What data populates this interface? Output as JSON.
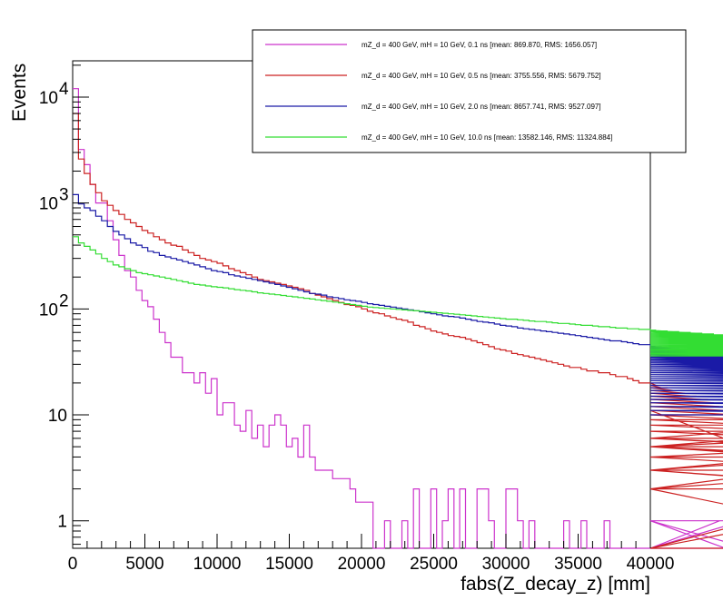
{
  "chart_data": {
    "type": "line",
    "title": "",
    "xlabel": "fabs(Z_decay_z) [mm]",
    "ylabel": "Events",
    "xlim": [
      0,
      40000
    ],
    "ylim": [
      0.55,
      22000
    ],
    "log_y": true,
    "grid": false,
    "legend_position": "top-right",
    "x_ticks": [
      {
        "value": 0,
        "label": "0"
      },
      {
        "value": 5000,
        "label": "5000"
      },
      {
        "value": 10000,
        "label": "10000"
      },
      {
        "value": 15000,
        "label": "15000"
      },
      {
        "value": 20000,
        "label": "20000"
      },
      {
        "value": 25000,
        "label": "25000"
      },
      {
        "value": 30000,
        "label": "30000"
      },
      {
        "value": 35000,
        "label": "35000"
      },
      {
        "value": 40000,
        "label": "40000"
      }
    ],
    "y_ticks": [
      {
        "value": 1,
        "base": "1",
        "exp": ""
      },
      {
        "value": 10,
        "base": "10",
        "exp": ""
      },
      {
        "value": 100,
        "base": "10",
        "exp": "2"
      },
      {
        "value": 1000,
        "base": "10",
        "exp": "3"
      },
      {
        "value": 10000,
        "base": "10",
        "exp": "4"
      }
    ],
    "bin_width": 400,
    "series": [
      {
        "name": "mZ_d = 400 GeV, mH = 10 GeV, 0.1 ns [mean: 869.870, RMS: 1656.057]",
        "color": "#cc33cc",
        "values": [
          12000,
          3200,
          2300,
          1500,
          1000,
          1000,
          680,
          450,
          320,
          230,
          200,
          150,
          120,
          105,
          80,
          60,
          48,
          35,
          35,
          25,
          25,
          20,
          25,
          16,
          22,
          10,
          13,
          13,
          8,
          7,
          11,
          6,
          8,
          5,
          8,
          10,
          8,
          5,
          6,
          4,
          8,
          4,
          3,
          3,
          3,
          2.5,
          2.5,
          2.5,
          2,
          1.5,
          1.5,
          1.5,
          0,
          0,
          1,
          0,
          0,
          1,
          0,
          2,
          0,
          0,
          2,
          0,
          1,
          2,
          0,
          2,
          0,
          0,
          2,
          2,
          1,
          0,
          0,
          2,
          2,
          1,
          0,
          1,
          0,
          0,
          0,
          0,
          0,
          1,
          0,
          0,
          1,
          0,
          0,
          0,
          1,
          0,
          0,
          0,
          0,
          0,
          0,
          0,
          0,
          0,
          0,
          0,
          0,
          0,
          0,
          0,
          0,
          0,
          0,
          0,
          1,
          0,
          0,
          0,
          1,
          0,
          0,
          0,
          0,
          0,
          0,
          0,
          0,
          0,
          0,
          0,
          0,
          0,
          0,
          0,
          0,
          0,
          0,
          0,
          0,
          0,
          0,
          0,
          0,
          0,
          0,
          0,
          0,
          0,
          0
        ]
      },
      {
        "name": "mZ_d = 400 GeV, mH = 10 GeV, 0.5 ns [mean: 3755.556, RMS: 5679.752]",
        "color": "#cc2222",
        "values": [
          7000,
          2600,
          1900,
          1500,
          1250,
          1050,
          950,
          850,
          780,
          700,
          650,
          600,
          550,
          520,
          480,
          450,
          420,
          400,
          390,
          360,
          340,
          320,
          300,
          290,
          280,
          270,
          255,
          240,
          230,
          220,
          210,
          200,
          190,
          185,
          180,
          175,
          170,
          165,
          160,
          155,
          150,
          140,
          135,
          130,
          125,
          120,
          115,
          110,
          108,
          105,
          100,
          95,
          92,
          90,
          86,
          83,
          80,
          78,
          75,
          70,
          68,
          65,
          62,
          60,
          58,
          56,
          55,
          54,
          52,
          50,
          48,
          46,
          44,
          42,
          41,
          40,
          38,
          37,
          36,
          35,
          34,
          33,
          32,
          31,
          30,
          29,
          28,
          28,
          27,
          26,
          26,
          25,
          25,
          24,
          23,
          23,
          22,
          21,
          20,
          20,
          20,
          19,
          18,
          18,
          17,
          17,
          16,
          15,
          15,
          14,
          14,
          13,
          12,
          11,
          11,
          10,
          10,
          9,
          9,
          8,
          8,
          8,
          8,
          7,
          7,
          7,
          7,
          6,
          5,
          6,
          6,
          6,
          5,
          5,
          4,
          5,
          4,
          4,
          4,
          3,
          3,
          3,
          3,
          2,
          3,
          2,
          2,
          2,
          2,
          2,
          0,
          0,
          0,
          0,
          2,
          5,
          7,
          5,
          3,
          5,
          3,
          6,
          11,
          0,
          0,
          0,
          0,
          5,
          10
        ]
      },
      {
        "name": "mZ_d = 400 GeV, mH = 10 GeV, 2.0 ns [mean: 8657.741, RMS: 9527.097]",
        "color": "#1a1aa6",
        "values": [
          1200,
          980,
          900,
          850,
          750,
          680,
          600,
          540,
          500,
          460,
          420,
          400,
          380,
          350,
          340,
          320,
          310,
          300,
          290,
          280,
          270,
          260,
          250,
          240,
          230,
          225,
          220,
          210,
          205,
          200,
          195,
          190,
          185,
          180,
          175,
          170,
          165,
          160,
          155,
          150,
          145,
          140,
          138,
          135,
          130,
          128,
          125,
          122,
          120,
          118,
          115,
          112,
          110,
          108,
          106,
          104,
          102,
          100,
          98,
          96,
          94,
          92,
          90,
          88,
          86,
          85,
          84,
          82,
          80,
          78,
          76,
          75,
          74,
          72,
          70,
          69,
          68,
          66,
          65,
          64,
          63,
          62,
          61,
          60,
          59,
          58,
          57,
          56,
          55,
          54,
          53,
          52,
          51,
          50,
          50,
          49,
          48,
          47,
          46,
          46,
          45,
          44,
          44,
          43,
          42,
          42,
          41,
          40,
          40,
          39,
          38,
          38,
          37,
          36,
          36,
          35,
          34,
          34,
          33,
          32,
          32,
          31,
          30,
          30,
          29,
          28,
          28,
          27,
          26,
          26,
          25,
          25,
          24,
          24,
          23,
          23,
          22,
          22,
          21,
          21,
          20,
          20,
          19,
          19,
          18,
          18,
          17,
          17,
          16,
          16,
          16,
          15,
          15,
          15,
          14,
          14,
          14,
          13,
          13,
          13,
          12,
          12,
          12,
          11,
          11,
          11,
          10,
          10,
          10,
          10
        ]
      },
      {
        "name": "mZ_d = 400 GeV, mH = 10 GeV, 10.0 ns [mean: 13582.146, RMS: 11324.884]",
        "color": "#33dd33",
        "values": [
          480,
          420,
          390,
          360,
          330,
          300,
          280,
          260,
          250,
          240,
          230,
          220,
          215,
          210,
          205,
          200,
          195,
          190,
          185,
          180,
          175,
          170,
          168,
          165,
          162,
          160,
          158,
          155,
          152,
          150,
          148,
          145,
          142,
          140,
          138,
          136,
          134,
          132,
          130,
          128,
          126,
          124,
          122,
          120,
          118,
          116,
          114,
          112,
          110,
          108,
          106,
          104,
          103,
          102,
          101,
          100,
          99,
          98,
          97,
          96,
          95,
          94,
          93,
          92,
          91,
          90,
          89,
          88,
          87,
          86,
          85,
          84,
          83,
          82,
          81,
          80,
          80,
          79,
          78,
          77,
          76,
          76,
          75,
          74,
          73,
          73,
          72,
          71,
          70,
          70,
          69,
          68,
          68,
          67,
          66,
          66,
          65,
          65,
          64,
          64,
          63,
          63,
          62,
          62,
          61,
          61,
          60,
          60,
          59,
          59,
          58,
          58,
          57,
          57,
          56,
          56,
          55,
          55,
          55,
          54,
          54,
          53,
          53,
          52,
          52,
          52,
          51,
          51,
          50,
          50,
          50,
          49,
          49,
          48,
          48,
          48,
          47,
          47,
          46,
          46,
          46,
          45,
          45,
          45,
          44,
          44,
          44,
          43,
          43,
          43,
          42,
          42,
          42,
          41,
          41,
          41,
          40,
          40,
          40,
          39,
          39,
          39,
          38,
          38,
          38,
          37,
          37,
          37,
          36
        ]
      }
    ]
  }
}
